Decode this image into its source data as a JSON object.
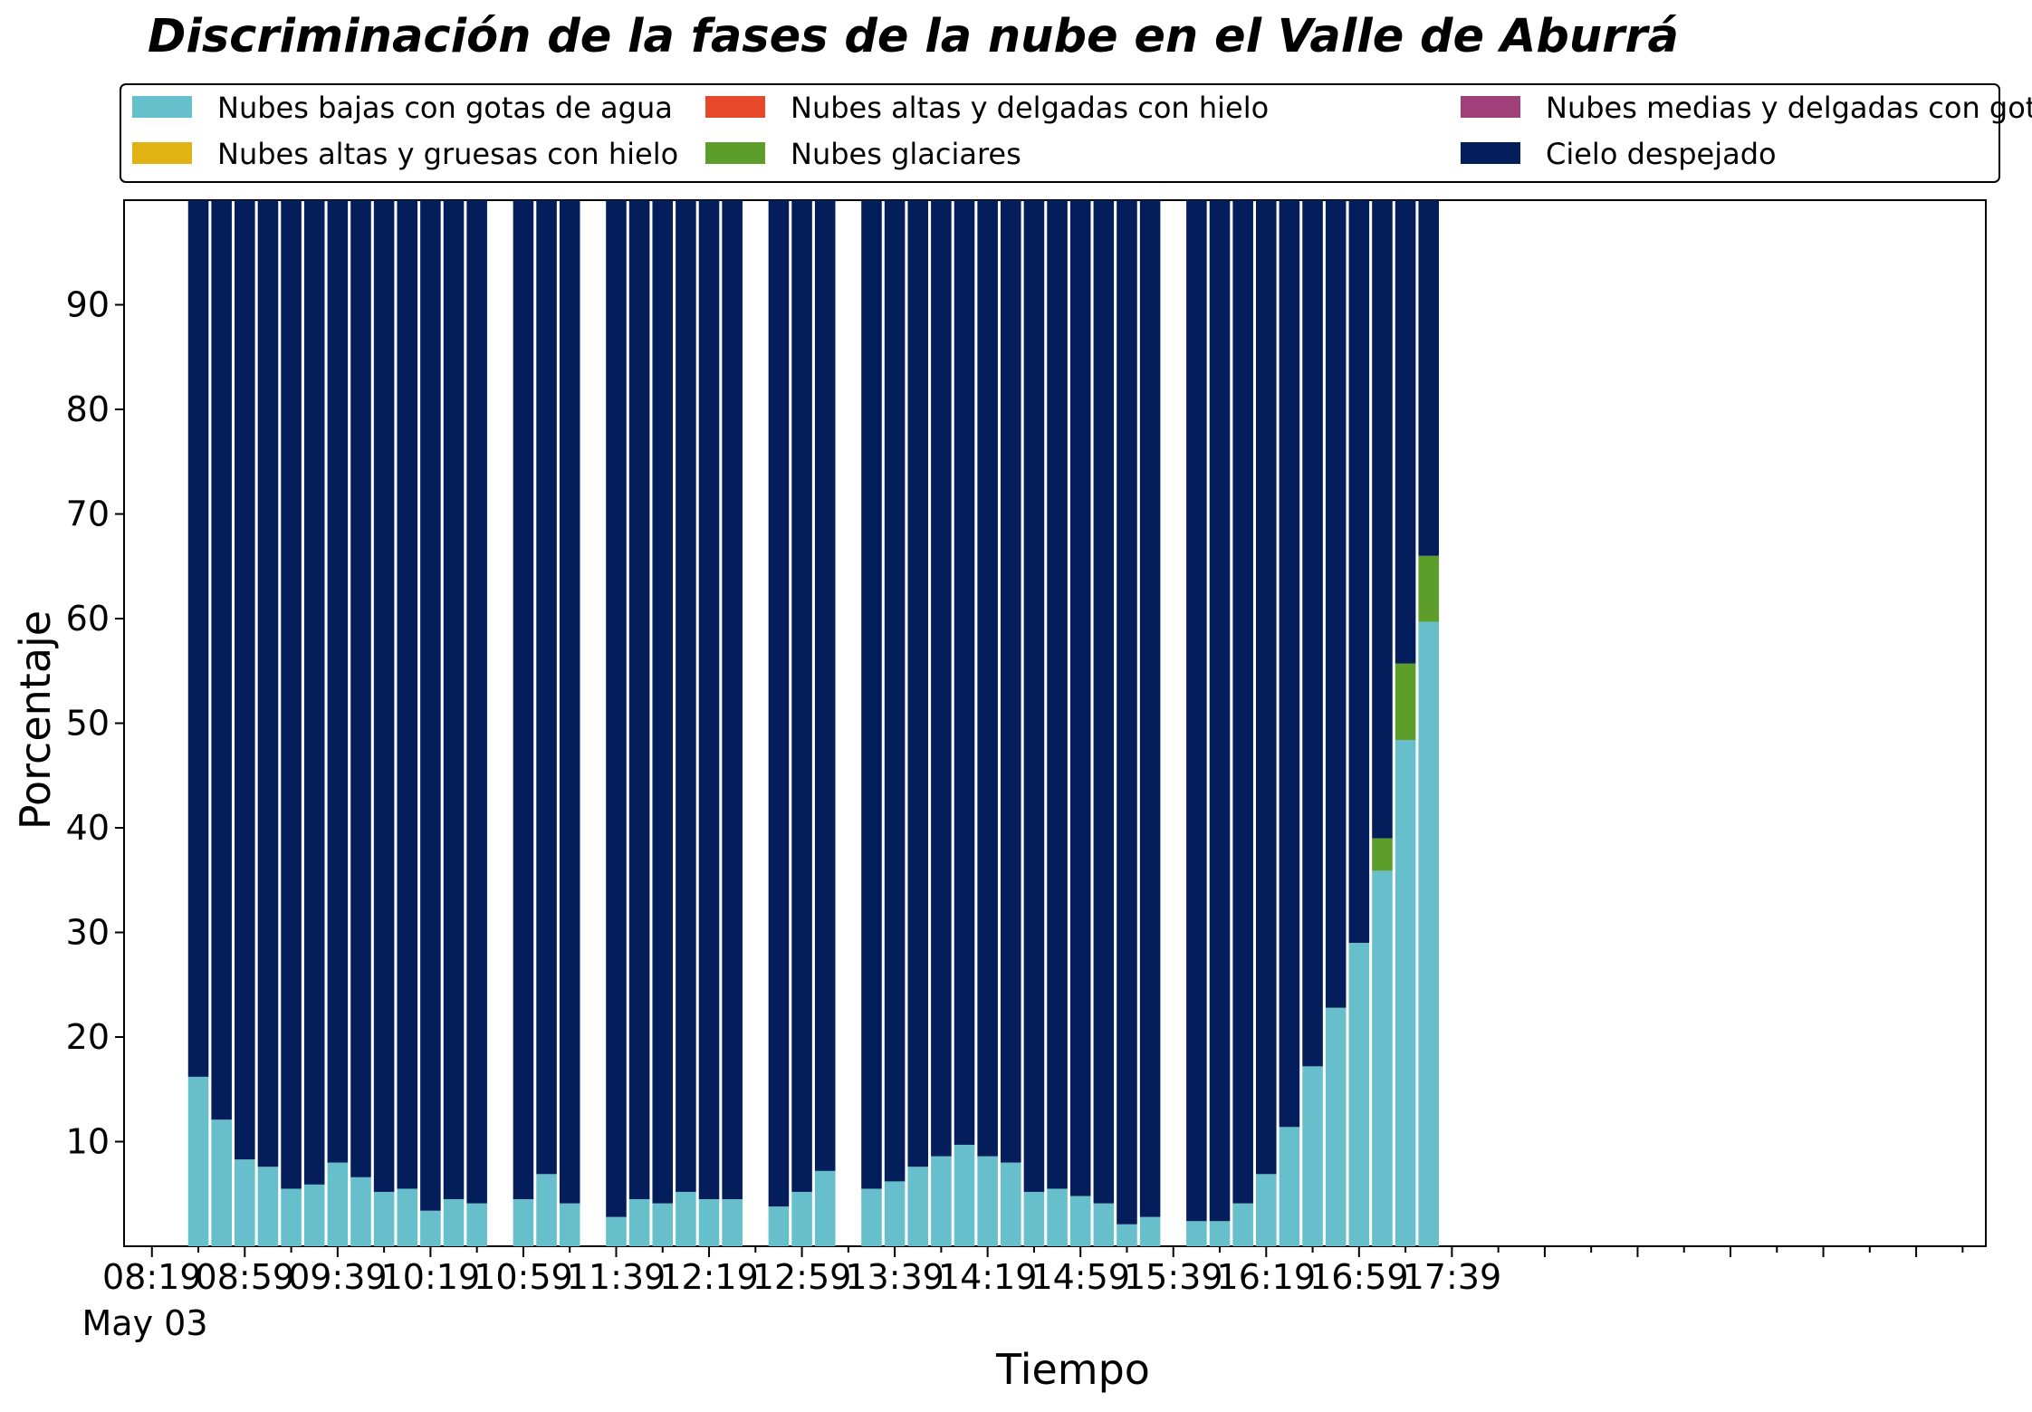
{
  "chart_data": {
    "type": "bar",
    "stacked": true,
    "title": "Discriminación de la fases de la nube en el Valle de Aburrá",
    "xlabel": "Tiempo",
    "ylabel": "Porcentaje",
    "ylim": [
      0,
      100
    ],
    "yticks": [
      10,
      20,
      30,
      40,
      50,
      60,
      70,
      80,
      90
    ],
    "x_tick_labels": [
      "08:19",
      "08:59",
      "09:39",
      "10:19",
      "10:59",
      "11:39",
      "12:19",
      "12:59",
      "13:39",
      "14:19",
      "14:59",
      "15:39",
      "16:19",
      "16:59",
      "17:39"
    ],
    "x_tick_sublabel": "May 03",
    "x_range_minutes": [
      -12,
      790
    ],
    "bar_interval_minutes": 10,
    "grid": false,
    "legend_position": "top",
    "x": [
      20,
      30,
      40,
      50,
      60,
      70,
      80,
      90,
      100,
      110,
      120,
      130,
      140,
      160,
      170,
      180,
      200,
      210,
      220,
      230,
      240,
      250,
      270,
      280,
      290,
      310,
      320,
      330,
      340,
      350,
      360,
      370,
      380,
      390,
      400,
      410,
      420,
      430,
      450,
      460,
      470,
      480,
      490,
      500,
      510,
      520,
      530,
      540,
      550
    ],
    "series": [
      {
        "name": "Nubes bajas con gotas de agua",
        "color": "#66bfca",
        "values": [
          16.2,
          12.1,
          8.3,
          7.6,
          5.5,
          5.9,
          8.0,
          6.6,
          5.2,
          5.5,
          3.4,
          4.5,
          4.1,
          4.5,
          6.9,
          4.1,
          2.8,
          4.5,
          4.1,
          5.2,
          4.5,
          4.5,
          3.8,
          5.2,
          7.2,
          5.5,
          6.2,
          7.6,
          8.6,
          9.7,
          8.6,
          8.0,
          5.2,
          5.5,
          4.8,
          4.1,
          2.1,
          2.8,
          2.4,
          2.4,
          4.1,
          6.9,
          11.4,
          17.2,
          22.8,
          29.0,
          35.9,
          48.4,
          59.7
        ]
      },
      {
        "name": "Nubes glaciares",
        "color": "#5d9e2a",
        "values": [
          0,
          0,
          0,
          0,
          0,
          0,
          0,
          0,
          0,
          0,
          0,
          0,
          0,
          0,
          0,
          0,
          0,
          0,
          0,
          0,
          0,
          0,
          0,
          0,
          0,
          0,
          0,
          0,
          0,
          0,
          0,
          0,
          0,
          0,
          0,
          0,
          0,
          0,
          0,
          0,
          0,
          0,
          0,
          0,
          0,
          0,
          3.1,
          7.3,
          6.3
        ]
      },
      {
        "name": "Nubes altas y gruesas con hielo",
        "color": "#e0b214",
        "values": [
          0,
          0,
          0,
          0,
          0,
          0,
          0,
          0,
          0,
          0,
          0,
          0,
          0,
          0,
          0,
          0,
          0,
          0,
          0,
          0,
          0,
          0,
          0,
          0,
          0,
          0,
          0,
          0,
          0,
          0,
          0,
          0,
          0,
          0,
          0,
          0,
          0,
          0,
          0,
          0,
          0,
          0,
          0,
          0,
          0,
          0,
          0,
          0,
          0
        ]
      },
      {
        "name": "Nubes medias y delgadas con gotas de agua",
        "color": "#a0407a",
        "values": [
          0,
          0,
          0,
          0,
          0,
          0,
          0,
          0,
          0,
          0,
          0,
          0,
          0,
          0,
          0,
          0,
          0,
          0,
          0,
          0,
          0,
          0,
          0,
          0,
          0,
          0,
          0,
          0,
          0,
          0,
          0,
          0,
          0,
          0,
          0,
          0,
          0,
          0,
          0,
          0,
          0,
          0,
          0,
          0,
          0,
          0,
          0,
          0,
          0
        ]
      },
      {
        "name": "Nubes altas y delgadas con hielo",
        "color": "#e8482a",
        "values": [
          0,
          0,
          0,
          0,
          0,
          0,
          0,
          0,
          0,
          0,
          0,
          0,
          0,
          0,
          0,
          0,
          0,
          0,
          0,
          0,
          0,
          0,
          0,
          0,
          0,
          0,
          0,
          0,
          0,
          0,
          0,
          0,
          0,
          0,
          0,
          0,
          0,
          0,
          0,
          0,
          0,
          0,
          0,
          0,
          0,
          0,
          0,
          0,
          0
        ]
      },
      {
        "name": "Cielo despejado",
        "color": "#041e5c",
        "values": [
          83.8,
          87.9,
          91.7,
          92.4,
          94.5,
          94.1,
          92.0,
          93.4,
          94.8,
          94.5,
          96.6,
          95.5,
          95.9,
          95.5,
          93.1,
          95.9,
          97.2,
          95.5,
          95.9,
          94.8,
          95.5,
          95.5,
          96.2,
          94.8,
          92.8,
          94.5,
          93.8,
          92.4,
          91.4,
          90.3,
          91.4,
          92.0,
          94.8,
          94.5,
          95.2,
          95.9,
          97.9,
          97.2,
          97.6,
          97.6,
          95.9,
          93.1,
          88.6,
          82.8,
          77.2,
          71.0,
          61.0,
          44.3,
          34.0
        ]
      }
    ],
    "legend_order": [
      0,
      2,
      4,
      1,
      3,
      5
    ]
  }
}
